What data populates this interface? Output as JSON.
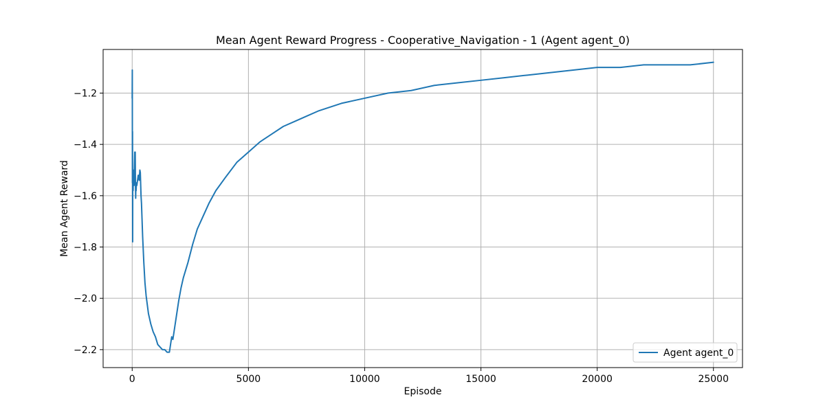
{
  "chart_data": {
    "type": "line",
    "title": "Mean Agent Reward Progress - Cooperative_Navigation - 1 (Agent agent_0)",
    "xlabel": "Episode",
    "ylabel": "Mean Agent Reward",
    "xlim": [
      -1250,
      26250
    ],
    "ylim": [
      -2.27,
      -1.03
    ],
    "xticks": [
      0,
      5000,
      10000,
      15000,
      20000,
      25000
    ],
    "yticks": [
      -2.2,
      -2.0,
      -1.8,
      -1.6,
      -1.4,
      -1.2
    ],
    "xtick_labels": [
      "0",
      "5000",
      "10000",
      "15000",
      "20000",
      "25000"
    ],
    "ytick_labels": [
      "−2.2",
      "−2.0",
      "−1.8",
      "−1.6",
      "−1.4",
      "−1.2"
    ],
    "grid": true,
    "legend": {
      "position": "lower-right",
      "entries": [
        "Agent agent_0"
      ]
    },
    "colors": {
      "series": "#1f77b4",
      "grid": "#b0b0b0",
      "frame": "#000000"
    },
    "series": [
      {
        "name": "Agent agent_0",
        "x": [
          0,
          5,
          10,
          15,
          20,
          25,
          30,
          35,
          40,
          50,
          60,
          70,
          80,
          100,
          110,
          120,
          130,
          140,
          150,
          160,
          170,
          180,
          200,
          230,
          260,
          300,
          330,
          350,
          380,
          400,
          450,
          500,
          550,
          600,
          700,
          800,
          900,
          1000,
          1100,
          1200,
          1300,
          1400,
          1500,
          1550,
          1600,
          1650,
          1700,
          1750,
          1800,
          1900,
          2000,
          2100,
          2200,
          2400,
          2600,
          2800,
          3000,
          3300,
          3600,
          4000,
          4500,
          5000,
          5500,
          6000,
          6500,
          7000,
          7500,
          8000,
          9000,
          10000,
          11000,
          12000,
          13000,
          14000,
          15000,
          16000,
          17000,
          18000,
          19000,
          20000,
          21000,
          22000,
          23000,
          24000,
          25000
        ],
        "y": [
          -1.22,
          -1.11,
          -1.55,
          -1.35,
          -1.78,
          -1.5,
          -1.56,
          -1.53,
          -1.58,
          -1.52,
          -1.55,
          -1.5,
          -1.56,
          -1.47,
          -1.43,
          -1.52,
          -1.43,
          -1.55,
          -1.61,
          -1.55,
          -1.58,
          -1.55,
          -1.56,
          -1.54,
          -1.52,
          -1.54,
          -1.5,
          -1.51,
          -1.6,
          -1.63,
          -1.76,
          -1.86,
          -1.94,
          -1.99,
          -2.06,
          -2.1,
          -2.13,
          -2.15,
          -2.18,
          -2.19,
          -2.2,
          -2.2,
          -2.21,
          -2.21,
          -2.21,
          -2.18,
          -2.15,
          -2.16,
          -2.13,
          -2.07,
          -2.01,
          -1.96,
          -1.92,
          -1.86,
          -1.79,
          -1.73,
          -1.69,
          -1.63,
          -1.58,
          -1.53,
          -1.47,
          -1.43,
          -1.39,
          -1.36,
          -1.33,
          -1.31,
          -1.29,
          -1.27,
          -1.24,
          -1.22,
          -1.2,
          -1.19,
          -1.17,
          -1.16,
          -1.15,
          -1.14,
          -1.13,
          -1.12,
          -1.11,
          -1.1,
          -1.1,
          -1.09,
          -1.09,
          -1.09,
          -1.08
        ]
      }
    ]
  }
}
